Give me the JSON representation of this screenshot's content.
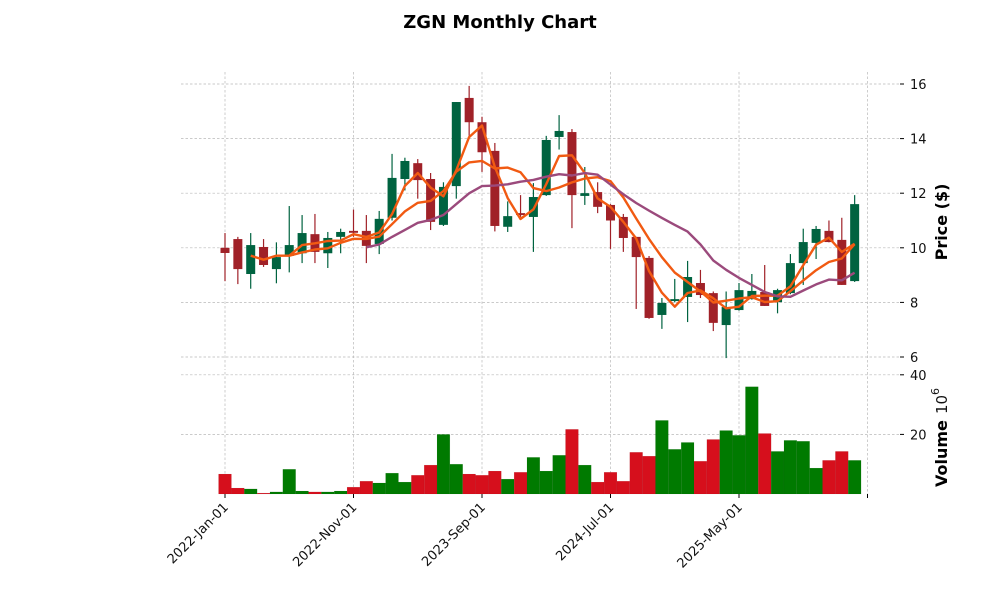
{
  "chart_data": {
    "type": "candlestick",
    "title": "ZGN Monthly Chart",
    "ylabel": "Price ($)",
    "volume_label": "Volume",
    "volume_exponent": "10",
    "volume_exponent_power": "6",
    "ylim": [
      5.5,
      16.4
    ],
    "volume_ylim": [
      0,
      40
    ],
    "price_ticks": [
      "6",
      "8",
      "10",
      "12",
      "14",
      "16"
    ],
    "volume_ticks": [
      "20",
      "40"
    ],
    "x_tick_labels": [
      "2022-Jan-01",
      "2022-Nov-01",
      "2023-Sep-01",
      "2024-Jul-01",
      "2025-May-01"
    ],
    "x_tick_indices": [
      0,
      10,
      20,
      30,
      40,
      50
    ],
    "grid": true,
    "moving_averages": [
      3,
      6,
      12
    ],
    "colors": {
      "up": "#006340",
      "down": "#a02128",
      "vol_up": "#007a00",
      "vol_down": "#d60f1c",
      "ma": [
        "#f15a12",
        "#f15a12",
        "#9b4a7c"
      ]
    },
    "ohlc": [
      [
        10.0,
        10.54,
        8.78,
        9.81
      ],
      [
        10.32,
        10.4,
        8.67,
        9.22
      ],
      [
        9.04,
        10.54,
        8.5,
        10.1
      ],
      [
        10.03,
        10.32,
        9.3,
        9.37
      ],
      [
        9.22,
        10.2,
        8.7,
        9.66
      ],
      [
        9.7,
        11.53,
        9.1,
        10.1
      ],
      [
        9.8,
        11.2,
        9.44,
        10.54
      ],
      [
        10.5,
        11.24,
        9.44,
        9.85
      ],
      [
        9.8,
        10.58,
        9.26,
        10.36
      ],
      [
        10.4,
        10.7,
        9.8,
        10.58
      ],
      [
        10.62,
        11.4,
        10.4,
        10.55
      ],
      [
        10.62,
        11.2,
        9.44,
        10.07
      ],
      [
        10.14,
        11.35,
        9.77,
        11.06
      ],
      [
        11.1,
        13.44,
        11.0,
        12.56
      ],
      [
        12.52,
        13.3,
        12.1,
        13.18
      ],
      [
        13.1,
        13.25,
        11.8,
        12.48
      ],
      [
        12.52,
        12.74,
        10.65,
        10.95
      ],
      [
        10.84,
        12.4,
        10.8,
        12.23
      ],
      [
        12.26,
        15.34,
        11.8,
        15.34
      ],
      [
        15.49,
        15.93,
        14.1,
        14.6
      ],
      [
        14.6,
        14.8,
        12.78,
        13.5
      ],
      [
        13.55,
        13.84,
        10.6,
        10.8
      ],
      [
        10.77,
        11.7,
        10.58,
        11.16
      ],
      [
        11.27,
        11.93,
        11.13,
        11.2
      ],
      [
        11.13,
        12.37,
        9.85,
        11.86
      ],
      [
        11.93,
        14.1,
        11.9,
        13.95
      ],
      [
        14.06,
        14.86,
        13.6,
        14.28
      ],
      [
        14.24,
        14.35,
        10.72,
        11.93
      ],
      [
        11.9,
        12.96,
        11.57,
        12.0
      ],
      [
        12.04,
        12.4,
        11.27,
        11.5
      ],
      [
        11.57,
        11.6,
        9.96,
        11.0
      ],
      [
        11.13,
        11.24,
        9.85,
        10.36
      ],
      [
        10.4,
        10.4,
        7.76,
        9.66
      ],
      [
        9.63,
        9.7,
        7.4,
        7.43
      ],
      [
        7.54,
        8.16,
        7.03,
        7.98
      ],
      [
        8.05,
        8.86,
        8.0,
        8.12
      ],
      [
        8.2,
        9.52,
        7.28,
        8.93
      ],
      [
        8.71,
        9.19,
        8.16,
        8.27
      ],
      [
        8.34,
        8.4,
        6.95,
        7.25
      ],
      [
        7.17,
        8.4,
        5.96,
        7.83
      ],
      [
        7.72,
        8.71,
        7.7,
        8.45
      ],
      [
        8.12,
        9.04,
        8.1,
        8.42
      ],
      [
        8.38,
        9.37,
        7.87,
        7.87
      ],
      [
        8.01,
        8.5,
        7.6,
        8.45
      ],
      [
        8.34,
        9.77,
        8.3,
        9.44
      ],
      [
        9.44,
        10.7,
        8.64,
        10.21
      ],
      [
        10.18,
        10.8,
        9.59,
        10.69
      ],
      [
        10.62,
        11.0,
        10.2,
        10.21
      ],
      [
        10.29,
        11.1,
        8.64,
        8.64
      ],
      [
        8.78,
        11.93,
        8.75,
        11.6
      ]
    ],
    "volume": [
      6.7,
      2.0,
      1.7,
      0.3,
      0.7,
      8.3,
      1.0,
      0.7,
      0.7,
      1.0,
      2.3,
      4.3,
      3.7,
      7.0,
      4.0,
      6.3,
      9.7,
      20.0,
      10.0,
      6.7,
      6.3,
      7.7,
      5.0,
      7.3,
      12.3,
      7.7,
      13.0,
      21.7,
      9.7,
      4.0,
      7.3,
      4.3,
      14.0,
      12.7,
      24.7,
      15.0,
      17.3,
      11.0,
      18.3,
      21.3,
      19.7,
      36.0,
      20.3,
      14.3,
      18.0,
      17.7,
      8.7,
      11.3,
      14.3,
      11.3
    ]
  }
}
